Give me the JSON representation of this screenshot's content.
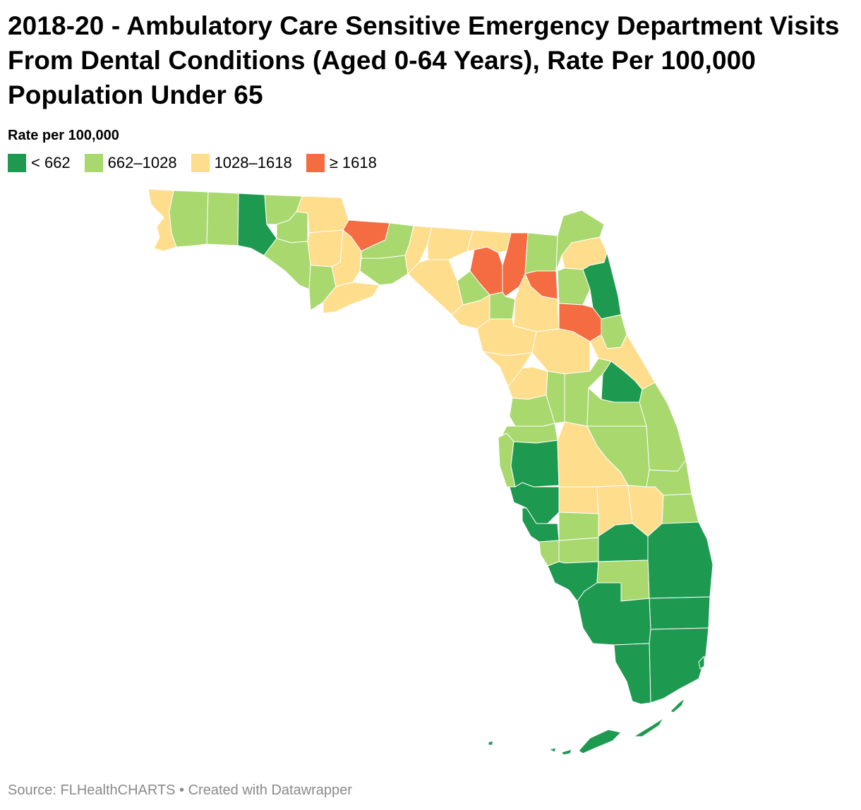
{
  "title": "2018-20 - Ambulatory Care Sensitive Emergency Department Visits From Dental Conditions (Aged 0-64 Years), Rate Per 100,000 Population Under 65",
  "legend": {
    "title": "Rate per 100,000",
    "bins": [
      {
        "label": "< 662",
        "color": "#1e9950"
      },
      {
        "label": "662–1028",
        "color": "#a8d86e"
      },
      {
        "label": "1028–1618",
        "color": "#fedd8d"
      },
      {
        "label": "≥ 1618",
        "color": "#f56c42"
      }
    ]
  },
  "source": "Source: FLHealthCHARTS • Created with Datawrapper",
  "colors": {
    "background": "#ffffff",
    "border": "#ffffff",
    "source_text": "#8a8a8a"
  }
}
